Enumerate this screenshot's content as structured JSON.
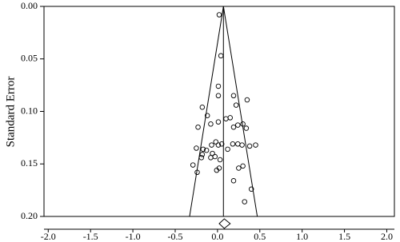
{
  "chart_data": {
    "type": "funnel",
    "y_label": "Standard Error",
    "xlim": [
      -2.05,
      2.09
    ],
    "ylim": [
      0,
      0.2
    ],
    "y_inverted": true,
    "xticks": [
      {
        "value": -2,
        "label": "-2.0"
      },
      {
        "value": -1.5,
        "label": "-1.5"
      },
      {
        "value": -1,
        "label": "-1.0"
      },
      {
        "value": -0.5,
        "label": "-0.5"
      },
      {
        "value": 0,
        "label": "0.0"
      },
      {
        "value": 0.5,
        "label": "0.5"
      },
      {
        "value": 1,
        "label": "1.0"
      },
      {
        "value": 1.5,
        "label": "1.5"
      },
      {
        "value": 2,
        "label": "2.0"
      }
    ],
    "yticks": [
      {
        "value": 0,
        "label": "0.00"
      },
      {
        "value": 0.05,
        "label": "0.05"
      },
      {
        "value": 0.1,
        "label": "0.10"
      },
      {
        "value": 0.15,
        "label": "0.15"
      },
      {
        "value": 0.2,
        "label": "0.20"
      }
    ],
    "funnel": {
      "center": 0.07,
      "lower_at_max": -0.33,
      "upper_at_max": 0.47
    },
    "summary_diamond": {
      "estimate": 0.08,
      "lower": 0.02,
      "upper": 0.15
    },
    "points": {
      "x": [
        0.02,
        0.04,
        0.01,
        0.01,
        0.19,
        -0.18,
        0.22,
        0.35,
        -0.12,
        0.15,
        -0.23,
        -0.08,
        0.01,
        0.1,
        0.24,
        0.3,
        0.34,
        0.19,
        -0.25,
        -0.17,
        -0.18,
        -0.13,
        -0.07,
        -0.02,
        0.01,
        0.05,
        0.12,
        0.18,
        0.24,
        0.29,
        0.38,
        0.45,
        -0.06,
        -0.03,
        -0.19,
        -0.29,
        -0.08,
        0.03,
        -0.01,
        -0.24,
        0.02,
        0.25,
        0.3,
        0.19,
        0.4,
        0.32
      ],
      "y": [
        0.008,
        0.047,
        0.076,
        0.085,
        0.085,
        0.096,
        0.094,
        0.089,
        0.104,
        0.106,
        0.115,
        0.112,
        0.11,
        0.107,
        0.113,
        0.112,
        0.116,
        0.115,
        0.135,
        0.136,
        0.141,
        0.137,
        0.132,
        0.129,
        0.132,
        0.131,
        0.136,
        0.131,
        0.131,
        0.132,
        0.133,
        0.132,
        0.14,
        0.143,
        0.144,
        0.151,
        0.144,
        0.146,
        0.156,
        0.158,
        0.154,
        0.154,
        0.152,
        0.166,
        0.174,
        0.186
      ]
    }
  }
}
